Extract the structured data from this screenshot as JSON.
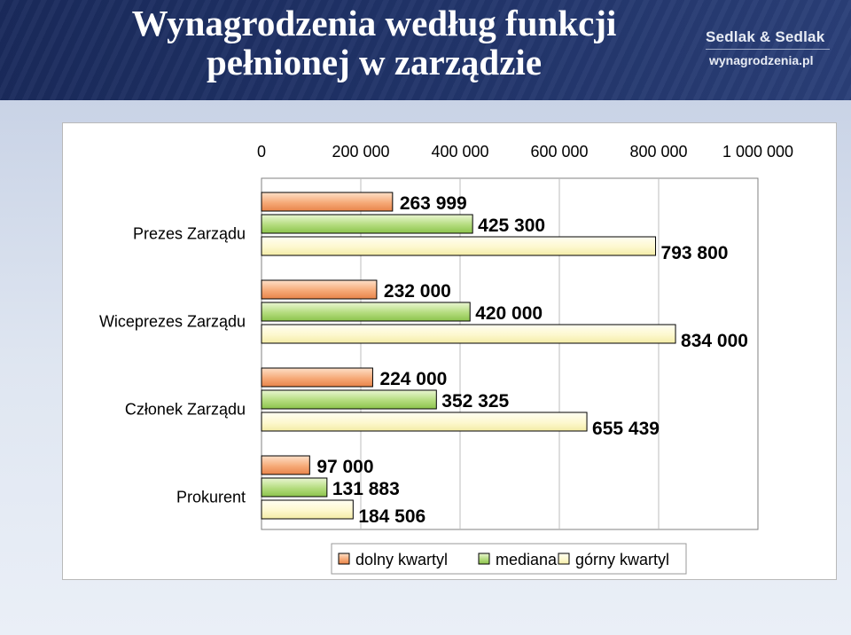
{
  "header": {
    "title_line1": "Wynagrodzenia według funkcji",
    "title_line2": "pełnionej w zarządzie",
    "logo_top": "Sedlak & Sedlak",
    "logo_bottom": "wynagrodzenia.pl"
  },
  "colors": {
    "dolny_kwartyl": "#f4a06a",
    "mediana": "#a6d46a",
    "gorny_kwartyl": "#fdf7c8",
    "header_bg": "#1f3166"
  },
  "chart_data": {
    "type": "bar",
    "orientation": "horizontal",
    "categories": [
      "Prezes Zarządu",
      "Wiceprezes Zarządu",
      "Członek Zarządu",
      "Prokurent"
    ],
    "series": [
      {
        "name": "dolny kwartyl",
        "values": [
          263999,
          232000,
          224000,
          97000
        ],
        "labels": [
          "263 999",
          "232 000",
          "224 000",
          "97 000"
        ]
      },
      {
        "name": "mediana",
        "values": [
          425300,
          420000,
          352325,
          131883
        ],
        "labels": [
          "425 300",
          "420 000",
          "352 325",
          "131 883"
        ]
      },
      {
        "name": "górny kwartyl",
        "values": [
          793800,
          834000,
          655439,
          184506
        ],
        "labels": [
          "793 800",
          "834 000",
          "655 439",
          "184 506"
        ]
      }
    ],
    "xlim": [
      0,
      1000000
    ],
    "x_ticks": [
      0,
      200000,
      400000,
      600000,
      800000,
      1000000
    ],
    "x_tick_labels": [
      "0",
      "200 000",
      "400 000",
      "600 000",
      "800 000",
      "1 000 000"
    ],
    "x_axis_position": "top",
    "grid": true,
    "legend_position": "bottom"
  }
}
